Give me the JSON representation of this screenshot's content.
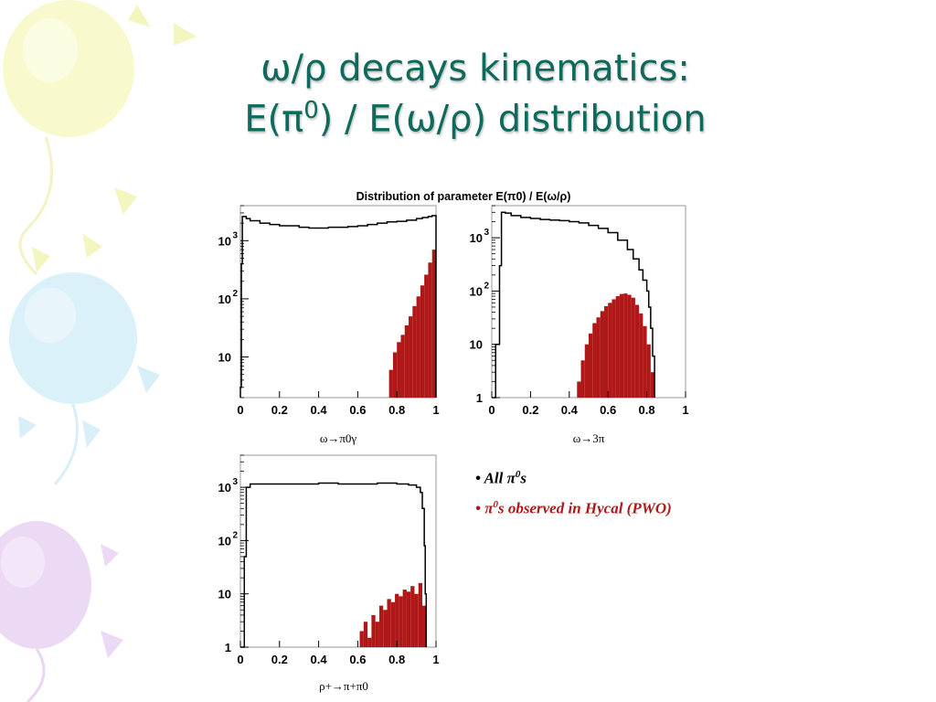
{
  "slide": {
    "title_line1": "ω/ρ decays kinematics:",
    "title_line2_pre": "E(π",
    "title_line2_sup": "0",
    "title_line2_post": ") / E(ω/ρ) distribution",
    "title_color": "#0e6a5c"
  },
  "chart_data": [
    {
      "type": "histogram",
      "figure_title": "Distribution of parameter E(π0) / E(ω/ρ)",
      "xlabel": "ω→π0γ",
      "xlim": [
        0,
        1
      ],
      "y_log": true,
      "ylim": [
        2,
        4000
      ],
      "x_ticks": [
        "0",
        "0.2",
        "0.4",
        "0.6",
        "0.8",
        "1"
      ],
      "y_ticks": [
        {
          "value": 1000,
          "base": "10",
          "exp": "3"
        },
        {
          "value": 100,
          "base": "10",
          "exp": "2"
        },
        {
          "value": 10,
          "base": "10",
          "exp": ""
        }
      ],
      "series": [
        {
          "name": "All π0s",
          "color": "#000000",
          "style": "step",
          "x": [
            0.0,
            0.005,
            0.01,
            0.03,
            0.05,
            0.1,
            0.15,
            0.2,
            0.25,
            0.3,
            0.35,
            0.4,
            0.45,
            0.5,
            0.55,
            0.6,
            0.65,
            0.7,
            0.75,
            0.8,
            0.85,
            0.9,
            0.93,
            0.96,
            0.98,
            0.995,
            1.0
          ],
          "y": [
            3,
            400,
            2600,
            2400,
            2200,
            2000,
            1900,
            1800,
            1800,
            1700,
            1650,
            1650,
            1700,
            1700,
            1750,
            1800,
            1900,
            2000,
            2100,
            2150,
            2250,
            2400,
            2500,
            2600,
            2700,
            2700,
            2
          ]
        },
        {
          "name": "π0s observed in Hycal (PWO)",
          "color": "#b01818",
          "style": "filled",
          "x": [
            0.77,
            0.79,
            0.81,
            0.83,
            0.85,
            0.87,
            0.89,
            0.91,
            0.93,
            0.95,
            0.97,
            0.99
          ],
          "y": [
            6,
            12,
            18,
            24,
            35,
            50,
            75,
            110,
            170,
            260,
            420,
            700
          ]
        }
      ]
    },
    {
      "type": "histogram",
      "xlabel": "ω→3π",
      "xlim": [
        0,
        1
      ],
      "y_log": true,
      "ylim": [
        1,
        4000
      ],
      "x_ticks": [
        "0",
        "0.2",
        "0.4",
        "0.6",
        "0.8",
        "1"
      ],
      "y_ticks": [
        {
          "value": 1000,
          "base": "10",
          "exp": "3"
        },
        {
          "value": 100,
          "base": "10",
          "exp": "2"
        },
        {
          "value": 10,
          "base": "10",
          "exp": ""
        },
        {
          "value": 1,
          "base": "1",
          "exp": ""
        }
      ],
      "series": [
        {
          "name": "All π0s",
          "color": "#000000",
          "style": "step",
          "x": [
            0.0,
            0.02,
            0.04,
            0.05,
            0.07,
            0.1,
            0.15,
            0.2,
            0.25,
            0.3,
            0.35,
            0.4,
            0.45,
            0.5,
            0.55,
            0.6,
            0.65,
            0.7,
            0.73,
            0.76,
            0.78,
            0.8,
            0.81,
            0.82,
            0.83,
            0.84
          ],
          "y": [
            1,
            10,
            300,
            3000,
            2900,
            2600,
            2400,
            2300,
            2200,
            2150,
            2100,
            2000,
            1900,
            1700,
            1500,
            1250,
            900,
            600,
            400,
            250,
            160,
            100,
            50,
            20,
            6,
            1
          ]
        },
        {
          "name": "π0s observed in Hycal (PWO)",
          "color": "#b01818",
          "style": "filled",
          "x": [
            0.45,
            0.47,
            0.49,
            0.51,
            0.53,
            0.55,
            0.57,
            0.59,
            0.61,
            0.63,
            0.65,
            0.67,
            0.69,
            0.71,
            0.73,
            0.75,
            0.77,
            0.79,
            0.81,
            0.83
          ],
          "y": [
            2,
            5,
            10,
            16,
            25,
            32,
            42,
            52,
            60,
            70,
            80,
            88,
            90,
            85,
            75,
            55,
            38,
            22,
            10,
            3
          ]
        }
      ]
    },
    {
      "type": "histogram",
      "xlabel": "ρ+→π+π0",
      "xlim": [
        0,
        1
      ],
      "y_log": true,
      "ylim": [
        1,
        4000
      ],
      "x_ticks": [
        "0",
        "0.2",
        "0.4",
        "0.6",
        "0.8",
        "1"
      ],
      "y_ticks": [
        {
          "value": 1000,
          "base": "10",
          "exp": "3"
        },
        {
          "value": 100,
          "base": "10",
          "exp": "2"
        },
        {
          "value": 10,
          "base": "10",
          "exp": ""
        },
        {
          "value": 1,
          "base": "1",
          "exp": ""
        }
      ],
      "series": [
        {
          "name": "All π0s",
          "color": "#000000",
          "style": "step",
          "x": [
            0.0,
            0.02,
            0.03,
            0.05,
            0.1,
            0.2,
            0.3,
            0.4,
            0.5,
            0.6,
            0.7,
            0.8,
            0.86,
            0.9,
            0.92,
            0.93,
            0.94,
            0.945,
            0.95
          ],
          "y": [
            1,
            50,
            1000,
            1150,
            1150,
            1150,
            1150,
            1200,
            1150,
            1150,
            1200,
            1150,
            1100,
            1000,
            800,
            400,
            80,
            10,
            1
          ]
        },
        {
          "name": "π0s observed in Hycal (PWO)",
          "color": "#b01818",
          "style": "filled",
          "x": [
            0.62,
            0.64,
            0.66,
            0.68,
            0.7,
            0.72,
            0.74,
            0.76,
            0.78,
            0.8,
            0.82,
            0.84,
            0.86,
            0.88,
            0.9,
            0.92,
            0.94
          ],
          "y": [
            2,
            3,
            1.5,
            4,
            3,
            6,
            5,
            8,
            7,
            10,
            9,
            12,
            11,
            14,
            10,
            16,
            6
          ]
        }
      ]
    }
  ],
  "legend": {
    "items": [
      {
        "bullet": "•",
        "pre": "All π",
        "sup": "0",
        "post": "s",
        "color": "#000000"
      },
      {
        "bullet": "•",
        "pre": "π",
        "sup": "0",
        "post": "s observed in Hycal (PWO)",
        "color": "#b01818"
      }
    ]
  }
}
